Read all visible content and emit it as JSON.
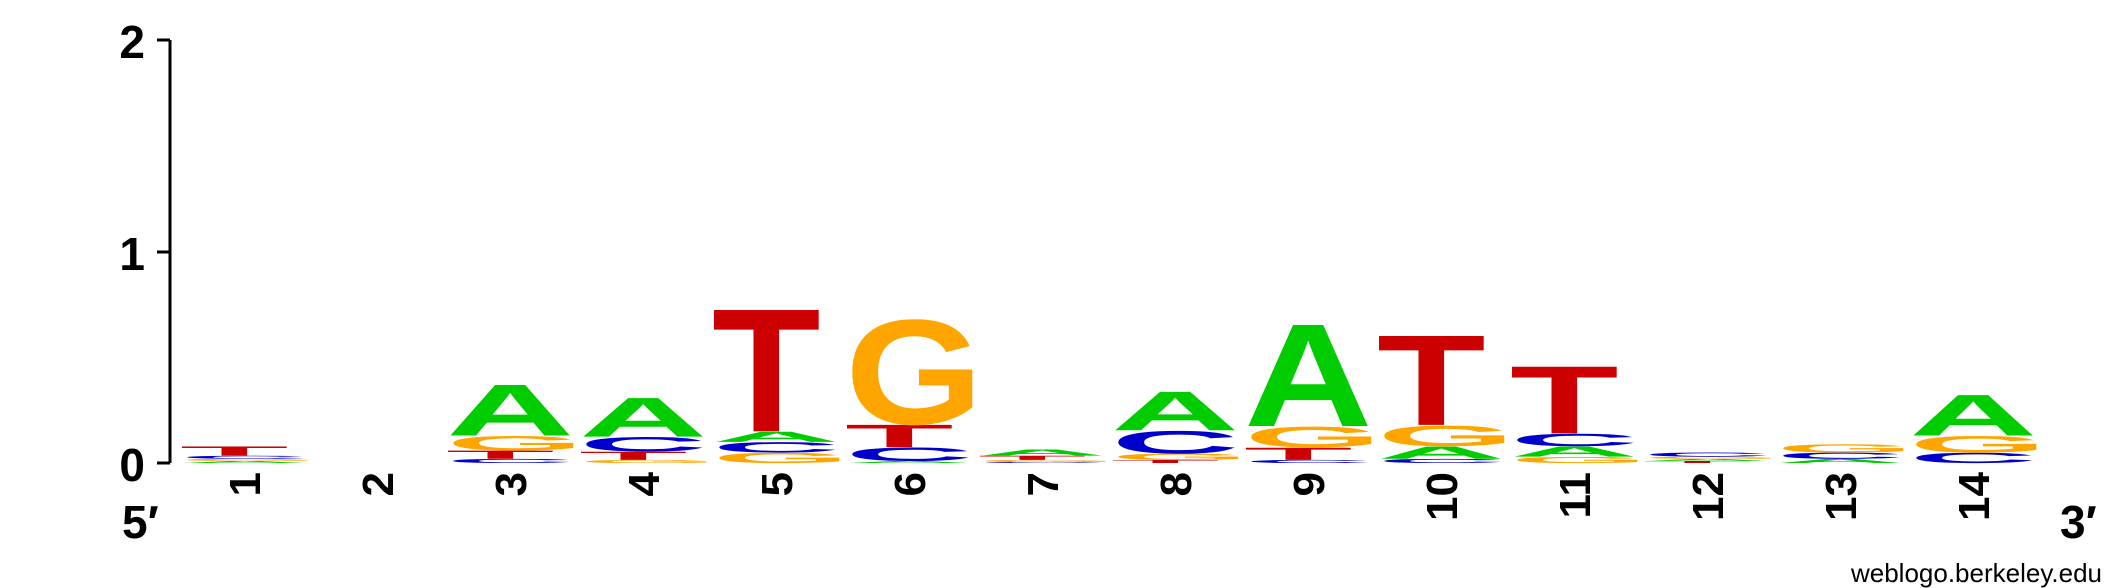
{
  "chart_data": {
    "type": "sequence-logo",
    "title": "",
    "xlabel": "",
    "ylabel": "",
    "ylim": [
      0,
      2
    ],
    "y_ticks": [
      "0",
      "1",
      "2"
    ],
    "end_labels": {
      "left": "5′",
      "right": "3′"
    },
    "positions": [
      "1",
      "2",
      "3",
      "4",
      "5",
      "6",
      "7",
      "8",
      "9",
      "10",
      "11",
      "12",
      "13",
      "14"
    ],
    "colors": {
      "A": "#00cc00",
      "C": "#0000cc",
      "G": "#ffa500",
      "T": "#cc0000"
    },
    "stacks": [
      [
        {
          "base": "A",
          "bits": 0.01
        },
        {
          "base": "G",
          "bits": 0.01
        },
        {
          "base": "C",
          "bits": 0.015
        },
        {
          "base": "T",
          "bits": 0.045
        }
      ],
      [],
      [
        {
          "base": "C",
          "bits": 0.02
        },
        {
          "base": "T",
          "bits": 0.04
        },
        {
          "base": "G",
          "bits": 0.07
        },
        {
          "base": "A",
          "bits": 0.25
        }
      ],
      [
        {
          "base": "G",
          "bits": 0.015
        },
        {
          "base": "T",
          "bits": 0.04
        },
        {
          "base": "C",
          "bits": 0.07
        },
        {
          "base": "A",
          "bits": 0.19
        }
      ],
      [
        {
          "base": "G",
          "bits": 0.05
        },
        {
          "base": "C",
          "bits": 0.05
        },
        {
          "base": "A",
          "bits": 0.05
        },
        {
          "base": "T",
          "bits": 0.6
        }
      ],
      [
        {
          "base": "A",
          "bits": 0.01
        },
        {
          "base": "C",
          "bits": 0.065
        },
        {
          "base": "T",
          "bits": 0.11
        },
        {
          "base": "G",
          "bits": 0.51
        }
      ],
      [
        {
          "base": "C",
          "bits": 0.005
        },
        {
          "base": "G",
          "bits": 0.01
        },
        {
          "base": "T",
          "bits": 0.02
        },
        {
          "base": "A",
          "bits": 0.03
        }
      ],
      [
        {
          "base": "T",
          "bits": 0.015
        },
        {
          "base": "G",
          "bits": 0.03
        },
        {
          "base": "C",
          "bits": 0.11
        },
        {
          "base": "A",
          "bits": 0.19
        }
      ],
      [
        {
          "base": "C",
          "bits": 0.015
        },
        {
          "base": "T",
          "bits": 0.06
        },
        {
          "base": "G",
          "bits": 0.1
        },
        {
          "base": "A",
          "bits": 0.5
        }
      ],
      [
        {
          "base": "C",
          "bits": 0.02
        },
        {
          "base": "A",
          "bits": 0.06
        },
        {
          "base": "G",
          "bits": 0.1
        },
        {
          "base": "T",
          "bits": 0.44
        }
      ],
      [
        {
          "base": "G",
          "bits": 0.03
        },
        {
          "base": "A",
          "bits": 0.05
        },
        {
          "base": "C",
          "bits": 0.06
        },
        {
          "base": "T",
          "bits": 0.33
        }
      ],
      [
        {
          "base": "T",
          "bits": 0.01
        },
        {
          "base": "A",
          "bits": 0.01
        },
        {
          "base": "G",
          "bits": 0.01
        },
        {
          "base": "C",
          "bits": 0.02
        }
      ],
      [
        {
          "base": "A",
          "bits": 0.02
        },
        {
          "base": "C",
          "bits": 0.03
        },
        {
          "base": "G",
          "bits": 0.04
        }
      ],
      [
        {
          "base": "C",
          "bits": 0.05
        },
        {
          "base": "G",
          "bits": 0.08
        },
        {
          "base": "A",
          "bits": 0.2
        }
      ]
    ]
  },
  "credit": "weblogo.berkeley.edu"
}
